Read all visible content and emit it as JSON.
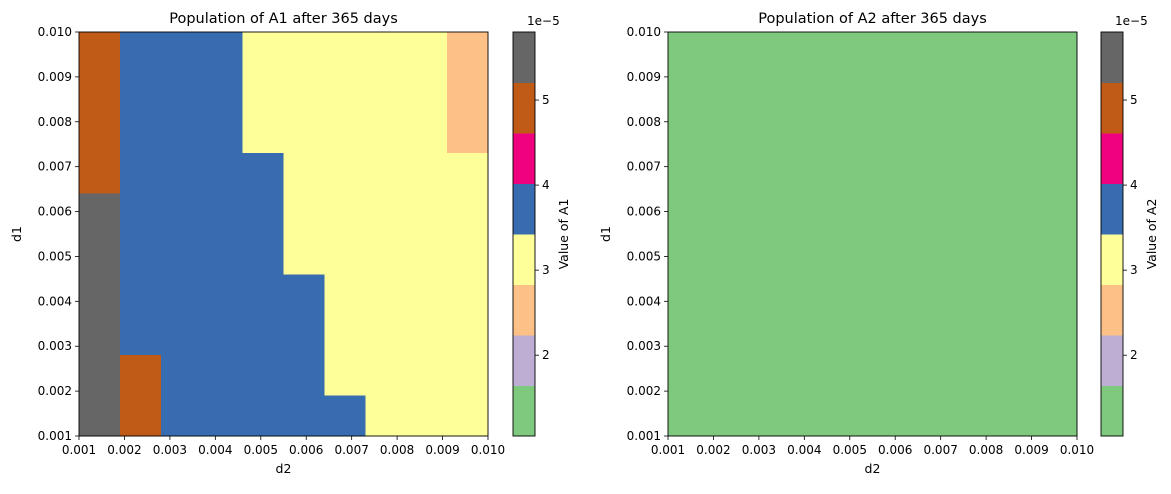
{
  "chart_data": [
    {
      "type": "heatmap",
      "title": "Population of A1 after 365 days",
      "xlabel": "d2",
      "ylabel": "d1",
      "xlim": [
        0.001,
        0.01
      ],
      "ylim": [
        0.001,
        0.01
      ],
      "x_ticks": [
        "0.001",
        "0.002",
        "0.003",
        "0.004",
        "0.005",
        "0.006",
        "0.007",
        "0.008",
        "0.009",
        "0.010"
      ],
      "y_ticks": [
        "0.001",
        "0.002",
        "0.003",
        "0.004",
        "0.005",
        "0.006",
        "0.007",
        "0.008",
        "0.009",
        "0.010"
      ],
      "grid_size": [
        10,
        10
      ],
      "cells_rows_top_to_bottom": [
        [
          5,
          4,
          3.5,
          3.5,
          3,
          3,
          3,
          3,
          3,
          2.5
        ],
        [
          5,
          4,
          3.5,
          3.5,
          3,
          3,
          3,
          3,
          3,
          2.5
        ],
        [
          5,
          4,
          3.5,
          3.5,
          3,
          3,
          3,
          3,
          3,
          2.5
        ],
        [
          5,
          4,
          3.5,
          3.5,
          3.5,
          3,
          3,
          3,
          3,
          3
        ],
        [
          5.5,
          4,
          3.5,
          3.5,
          3.5,
          3,
          3,
          3,
          3,
          3
        ],
        [
          5.5,
          4,
          4,
          3.5,
          3.5,
          3,
          3,
          3,
          3,
          3
        ],
        [
          5.5,
          4,
          4,
          3.5,
          3.5,
          3.5,
          3,
          3,
          3,
          3
        ],
        [
          5.5,
          4,
          4,
          3.5,
          3.5,
          3.5,
          3,
          3,
          3,
          3
        ],
        [
          5.5,
          5,
          4,
          3.5,
          3.5,
          3.5,
          3,
          3,
          3,
          3
        ],
        [
          5.5,
          5,
          4,
          4,
          3.5,
          3.5,
          3.5,
          3,
          3,
          3
        ]
      ],
      "colorbar": {
        "label": "Value of A1",
        "ticks": [
          "2",
          "3",
          "4",
          "5"
        ],
        "offset_text": "1e−5"
      }
    },
    {
      "type": "heatmap",
      "title": "Population of A2 after 365 days",
      "xlabel": "d2",
      "ylabel": "d1",
      "xlim": [
        0.001,
        0.01
      ],
      "ylim": [
        0.001,
        0.01
      ],
      "x_ticks": [
        "0.001",
        "0.002",
        "0.003",
        "0.004",
        "0.005",
        "0.006",
        "0.007",
        "0.008",
        "0.009",
        "0.010"
      ],
      "y_ticks": [
        "0.001",
        "0.002",
        "0.003",
        "0.004",
        "0.005",
        "0.006",
        "0.007",
        "0.008",
        "0.009",
        "0.010"
      ],
      "grid_size": [
        10,
        10
      ],
      "uniform_value": 1.3,
      "colorbar": {
        "label": "Value of A2",
        "ticks": [
          "2",
          "3",
          "4",
          "5"
        ],
        "offset_text": "1e−5"
      }
    }
  ],
  "colormap": {
    "name": "Accent",
    "vmin": 1.05,
    "vmax": 5.8,
    "colors": [
      "#7fc97f",
      "#beaed4",
      "#fdc086",
      "#ffff99",
      "#386cb0",
      "#f0027f",
      "#bf5b17",
      "#666666"
    ]
  }
}
